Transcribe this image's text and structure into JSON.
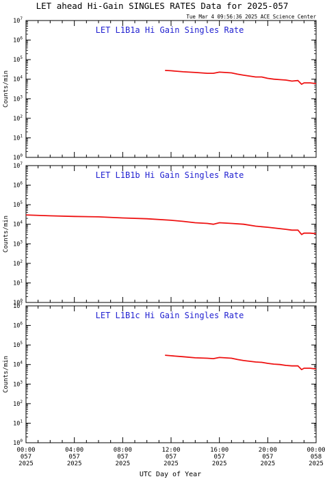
{
  "title": "LET ahead Hi-Gain SINGLES RATES Data for 2025-057",
  "timestamp": "Tue Mar  4 09:56:36 2025 ACE Science Center",
  "xlabel": "UTC Day of Year",
  "ylabel": "Counts/min",
  "colors": {
    "series": "#ee1111",
    "panel_title": "#1f1fd0",
    "axes": "#000000"
  },
  "x_ticks": [
    {
      "hours": 0,
      "time": "00:00",
      "day": "057",
      "year": "2025"
    },
    {
      "hours": 4,
      "time": "04:00",
      "day": "057",
      "year": "2025"
    },
    {
      "hours": 8,
      "time": "08:00",
      "day": "057",
      "year": "2025"
    },
    {
      "hours": 12,
      "time": "12:00",
      "day": "057",
      "year": "2025"
    },
    {
      "hours": 16,
      "time": "16:00",
      "day": "057",
      "year": "2025"
    },
    {
      "hours": 20,
      "time": "20:00",
      "day": "057",
      "year": "2025"
    },
    {
      "hours": 24,
      "time": "00:00",
      "day": "058",
      "year": "2025"
    }
  ],
  "y_ticks": [
    {
      "exp": 0,
      "base": "10",
      "sup": "0"
    },
    {
      "exp": 1,
      "base": "10",
      "sup": "1"
    },
    {
      "exp": 2,
      "base": "10",
      "sup": "2"
    },
    {
      "exp": 3,
      "base": "10",
      "sup": "3"
    },
    {
      "exp": 4,
      "base": "10",
      "sup": "4"
    },
    {
      "exp": 5,
      "base": "10",
      "sup": "5"
    },
    {
      "exp": 6,
      "base": "10",
      "sup": "6"
    },
    {
      "exp": 7,
      "base": "10",
      "sup": "7"
    }
  ],
  "chart_data": [
    {
      "type": "line",
      "title": "LET L1B1a Hi Gain Singles Rate",
      "x_unit": "hours since 2025-057 00:00 UTC",
      "xlim": [
        0,
        24
      ],
      "ylim": [
        1,
        10000000
      ],
      "y_scale": "log",
      "series": [
        {
          "x": [
            11.5,
            12,
            13,
            14,
            15,
            15.5,
            16,
            17,
            17.5,
            18,
            19,
            19.5,
            20,
            20.5,
            21,
            21.5,
            22,
            22.5,
            22.8,
            23,
            23.5,
            24
          ],
          "y": [
            28000,
            27000,
            24000,
            22000,
            20000,
            20000,
            23000,
            21000,
            18000,
            16000,
            13000,
            13000,
            11000,
            10000,
            9500,
            9000,
            8000,
            8500,
            5500,
            6500,
            6500,
            6000
          ]
        }
      ]
    },
    {
      "type": "line",
      "title": "LET L1B1b Hi Gain Singles Rate",
      "x_unit": "hours since 2025-057 00:00 UTC",
      "xlim": [
        0,
        24
      ],
      "ylim": [
        1,
        10000000
      ],
      "y_scale": "log",
      "series": [
        {
          "x": [
            0,
            2,
            4,
            6,
            8,
            10,
            12,
            13,
            14,
            15,
            15.5,
            16,
            17,
            18,
            19,
            20,
            20.5,
            21,
            21.5,
            22,
            22.5,
            22.8,
            23,
            23.5,
            24
          ],
          "y": [
            30000,
            27000,
            25000,
            24000,
            21000,
            19000,
            16000,
            14000,
            12000,
            11000,
            10000,
            12000,
            11000,
            10000,
            8000,
            7000,
            6500,
            6000,
            5500,
            5000,
            5000,
            3000,
            3500,
            3500,
            3300
          ]
        }
      ]
    },
    {
      "type": "line",
      "title": "LET L1B1c Hi Gain Singles Rate",
      "x_unit": "hours since 2025-057 00:00 UTC",
      "xlim": [
        0,
        24
      ],
      "ylim": [
        1,
        10000000
      ],
      "y_scale": "log",
      "series": [
        {
          "x": [
            11.5,
            12,
            13,
            14,
            15,
            15.5,
            16,
            17,
            17.5,
            18,
            19,
            19.5,
            20,
            20.5,
            21,
            21.5,
            22,
            22.5,
            22.8,
            23,
            23.5,
            24
          ],
          "y": [
            30000,
            28000,
            25000,
            22000,
            21000,
            20000,
            23000,
            21000,
            18000,
            16000,
            13500,
            13000,
            11500,
            10500,
            10000,
            9000,
            8500,
            8500,
            5500,
            6500,
            6500,
            6000
          ]
        }
      ]
    }
  ]
}
